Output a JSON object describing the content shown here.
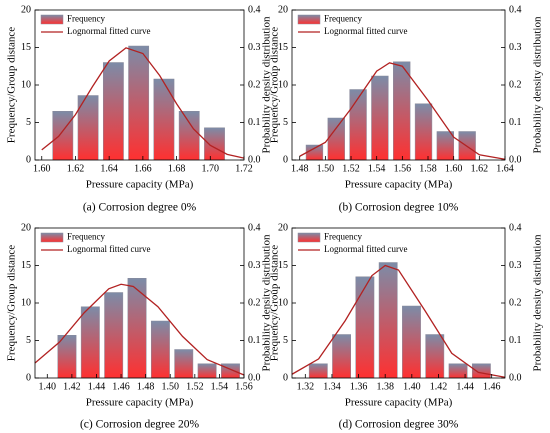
{
  "chart_data": [
    {
      "type": "histogram",
      "caption": "(a) Corrosion degree 0%",
      "xlabel": "Pressure capacity (MPa)",
      "ylabel": "Frequency/Group distance",
      "y2label": "Probability density distribution",
      "bins": [
        1.605,
        1.62,
        1.635,
        1.65,
        1.665,
        1.68,
        1.695,
        1.71
      ],
      "series": [
        {
          "name": "Frequency",
          "color": "#ff3030",
          "values": [
            6.5,
            8.6,
            13,
            15.2,
            10.8,
            6.5,
            4.3
          ]
        },
        {
          "name": "Lognormal fitted curve",
          "color": "#b22222",
          "axis": "y2",
          "x": [
            1.6,
            1.61,
            1.62,
            1.63,
            1.64,
            1.65,
            1.66,
            1.67,
            1.68,
            1.69,
            1.7,
            1.71,
            1.72
          ],
          "values": [
            0.027,
            0.063,
            0.121,
            0.195,
            0.264,
            0.299,
            0.284,
            0.225,
            0.15,
            0.083,
            0.039,
            0.015,
            0.005
          ]
        }
      ],
      "xlim": [
        1.596,
        1.72
      ],
      "xticks": [
        {
          "value": 1.6,
          "label": "1.60"
        },
        1.62,
        1.64,
        1.66,
        1.68,
        {
          "value": 1.7,
          "label": "1.70"
        },
        1.72
      ],
      "ylim": [
        0,
        20
      ],
      "yticks": [
        0,
        5,
        10,
        15,
        20
      ],
      "y2lim": [
        0,
        0.4
      ],
      "y2ticks": [
        {
          "value": 0,
          "label": "0.0"
        },
        0.1,
        0.2,
        0.3,
        0.4
      ],
      "legend": "upper left"
    },
    {
      "type": "histogram",
      "caption": "(b) Corrosion degree 10%",
      "xlabel": "Pressure capacity (MPa)",
      "ylabel": "Frequency/Group distance",
      "y2label": "Probability density distribution",
      "bins": [
        1.483,
        1.5,
        1.517,
        1.534,
        1.551,
        1.568,
        1.585,
        1.602,
        1.619
      ],
      "series": [
        {
          "name": "Frequency",
          "color": "#ff3030",
          "values": [
            2,
            5.6,
            9.4,
            11.2,
            13.1,
            7.5,
            3.8,
            3.8
          ]
        },
        {
          "name": "Lognormal fitted curve",
          "color": "#b22222",
          "axis": "y2",
          "x": [
            1.48,
            1.5,
            1.52,
            1.54,
            1.55,
            1.56,
            1.58,
            1.6,
            1.62,
            1.64
          ],
          "values": [
            0.01,
            0.047,
            0.137,
            0.237,
            0.259,
            0.25,
            0.159,
            0.061,
            0.014,
            0.002
          ]
        }
      ],
      "xlim": [
        1.474,
        1.64
      ],
      "xticks": [
        1.48,
        {
          "value": 1.5,
          "label": "1.50"
        },
        1.52,
        1.54,
        1.56,
        1.58,
        {
          "value": 1.6,
          "label": "1.60"
        },
        1.62,
        1.64
      ],
      "ylim": [
        0,
        20
      ],
      "yticks": [
        0,
        5,
        10,
        15,
        20
      ],
      "y2lim": [
        0,
        0.4
      ],
      "y2ticks": [
        {
          "value": 0,
          "label": "0.0"
        },
        0.1,
        0.2,
        0.3,
        0.4
      ],
      "legend": "upper left"
    },
    {
      "type": "histogram",
      "caption": "(c) Corrosion degree 20%",
      "xlabel": "Pressure capacity (MPa)",
      "ylabel": "Frequency/Group distance",
      "y2label": "Probability density distribution",
      "bins": [
        1.4065,
        1.4255,
        1.4445,
        1.4635,
        1.4825,
        1.5015,
        1.5205,
        1.5395,
        1.5585
      ],
      "series": [
        {
          "name": "Frequency",
          "color": "#ff3030",
          "values": [
            5.7,
            9.5,
            11.4,
            13.3,
            7.6,
            3.8,
            1.9,
            1.9
          ]
        },
        {
          "name": "Lognormal fitted curve",
          "color": "#b22222",
          "axis": "y2",
          "x": [
            1.39,
            1.41,
            1.43,
            1.45,
            1.46,
            1.47,
            1.49,
            1.51,
            1.53,
            1.56
          ],
          "values": [
            0.04,
            0.096,
            0.174,
            0.238,
            0.25,
            0.244,
            0.19,
            0.111,
            0.049,
            0.008
          ]
        }
      ],
      "xlim": [
        1.39,
        1.56
      ],
      "xticks": [
        {
          "value": 1.4,
          "label": "1.40"
        },
        1.42,
        1.44,
        1.46,
        1.48,
        {
          "value": 1.5,
          "label": "1.50"
        },
        1.52,
        1.54,
        1.56
      ],
      "ylim": [
        0,
        20
      ],
      "yticks": [
        0,
        5,
        10,
        15,
        20
      ],
      "y2lim": [
        0,
        0.4
      ],
      "y2ticks": [
        {
          "value": 0,
          "label": "0.0"
        },
        0.1,
        0.2,
        0.3,
        0.4
      ],
      "legend": "upper left"
    },
    {
      "type": "histogram",
      "caption": "(d) Corrosion degree 30%",
      "xlabel": "Pressure capacity (MPa)",
      "ylabel": "Frequency/Group distance",
      "y2label": "Probability density distribution",
      "bins": [
        1.321,
        1.3385,
        1.356,
        1.3735,
        1.391,
        1.4085,
        1.426,
        1.4435,
        1.461
      ],
      "series": [
        {
          "name": "Frequency",
          "color": "#ff3030",
          "values": [
            1.9,
            5.8,
            13.5,
            15.4,
            9.6,
            5.8,
            1.9,
            1.9
          ]
        },
        {
          "name": "Lognormal fitted curve",
          "color": "#b22222",
          "axis": "y2",
          "x": [
            1.31,
            1.33,
            1.35,
            1.37,
            1.38,
            1.39,
            1.41,
            1.43,
            1.45,
            1.47
          ],
          "values": [
            0.01,
            0.051,
            0.153,
            0.273,
            0.3,
            0.288,
            0.179,
            0.066,
            0.015,
            0.002
          ]
        }
      ],
      "xlim": [
        1.31,
        1.47
      ],
      "xticks": [
        1.32,
        1.34,
        1.36,
        1.38,
        {
          "value": 1.4,
          "label": "1.40"
        },
        1.42,
        1.44,
        1.46
      ],
      "ylim": [
        0,
        20
      ],
      "yticks": [
        0,
        5,
        10,
        15,
        20
      ],
      "y2lim": [
        0,
        0.4
      ],
      "y2ticks": [
        {
          "value": 0,
          "label": "0.0"
        },
        0.1,
        0.2,
        0.3,
        0.4
      ],
      "legend": "upper left"
    }
  ]
}
